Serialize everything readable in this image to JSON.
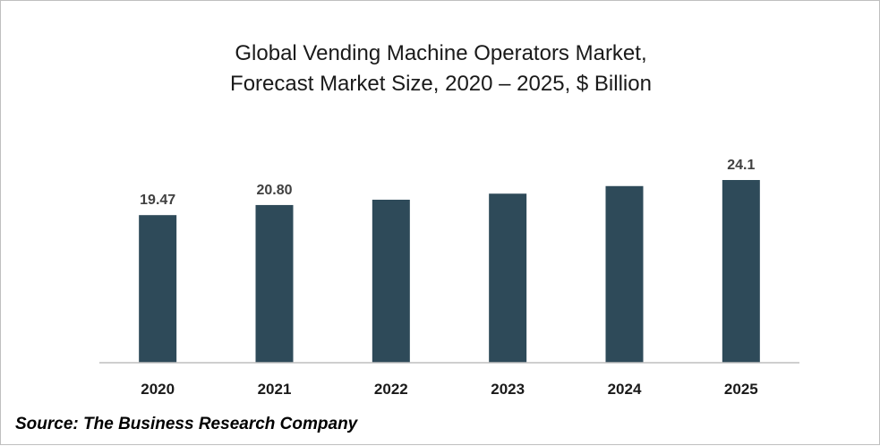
{
  "chart_data": {
    "type": "bar",
    "title_lines": [
      "Global Vending Machine Operators Market,",
      "Forecast Market Size, 2020 – 2025, $ Billion"
    ],
    "categories": [
      "2020",
      "2021",
      "2022",
      "2023",
      "2024",
      "2025"
    ],
    "values": [
      19.47,
      20.8,
      21.5,
      22.3,
      23.3,
      24.1
    ],
    "data_labels": [
      "19.47",
      "20.80",
      "",
      "",
      "",
      "24.1"
    ],
    "xlabel": "",
    "ylabel": "",
    "ylim": [
      0,
      24.1
    ],
    "grid": false,
    "legend": "none",
    "bar_color": "#2e4a59",
    "label_color": "#404040"
  },
  "source": "Source: The Business Research Company"
}
